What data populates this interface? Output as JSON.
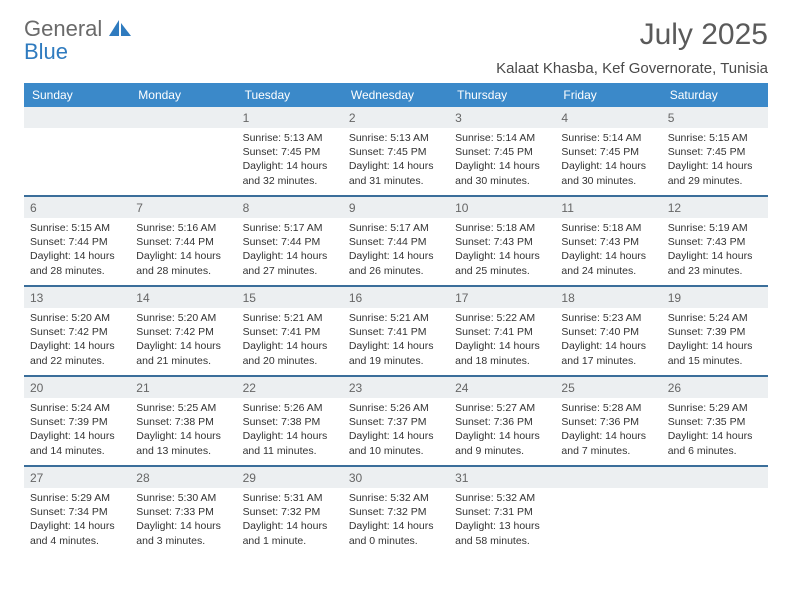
{
  "logo": {
    "word1": "General",
    "word2": "Blue"
  },
  "title": "July 2025",
  "subtitle": "Kalaat Khasba, Kef Governorate, Tunisia",
  "colors": {
    "header_bg": "#3b89c9",
    "week_border": "#3b6e9a",
    "daynum_bg": "#eceff1",
    "logo_gray": "#6a6a6a",
    "logo_blue": "#2f7bbf"
  },
  "dayHeaders": [
    "Sunday",
    "Monday",
    "Tuesday",
    "Wednesday",
    "Thursday",
    "Friday",
    "Saturday"
  ],
  "weeks": [
    [
      {
        "n": "",
        "sr": "",
        "ss": "",
        "dl": ""
      },
      {
        "n": "",
        "sr": "",
        "ss": "",
        "dl": ""
      },
      {
        "n": "1",
        "sr": "5:13 AM",
        "ss": "7:45 PM",
        "dl": "14 hours and 32 minutes."
      },
      {
        "n": "2",
        "sr": "5:13 AM",
        "ss": "7:45 PM",
        "dl": "14 hours and 31 minutes."
      },
      {
        "n": "3",
        "sr": "5:14 AM",
        "ss": "7:45 PM",
        "dl": "14 hours and 30 minutes."
      },
      {
        "n": "4",
        "sr": "5:14 AM",
        "ss": "7:45 PM",
        "dl": "14 hours and 30 minutes."
      },
      {
        "n": "5",
        "sr": "5:15 AM",
        "ss": "7:45 PM",
        "dl": "14 hours and 29 minutes."
      }
    ],
    [
      {
        "n": "6",
        "sr": "5:15 AM",
        "ss": "7:44 PM",
        "dl": "14 hours and 28 minutes."
      },
      {
        "n": "7",
        "sr": "5:16 AM",
        "ss": "7:44 PM",
        "dl": "14 hours and 28 minutes."
      },
      {
        "n": "8",
        "sr": "5:17 AM",
        "ss": "7:44 PM",
        "dl": "14 hours and 27 minutes."
      },
      {
        "n": "9",
        "sr": "5:17 AM",
        "ss": "7:44 PM",
        "dl": "14 hours and 26 minutes."
      },
      {
        "n": "10",
        "sr": "5:18 AM",
        "ss": "7:43 PM",
        "dl": "14 hours and 25 minutes."
      },
      {
        "n": "11",
        "sr": "5:18 AM",
        "ss": "7:43 PM",
        "dl": "14 hours and 24 minutes."
      },
      {
        "n": "12",
        "sr": "5:19 AM",
        "ss": "7:43 PM",
        "dl": "14 hours and 23 minutes."
      }
    ],
    [
      {
        "n": "13",
        "sr": "5:20 AM",
        "ss": "7:42 PM",
        "dl": "14 hours and 22 minutes."
      },
      {
        "n": "14",
        "sr": "5:20 AM",
        "ss": "7:42 PM",
        "dl": "14 hours and 21 minutes."
      },
      {
        "n": "15",
        "sr": "5:21 AM",
        "ss": "7:41 PM",
        "dl": "14 hours and 20 minutes."
      },
      {
        "n": "16",
        "sr": "5:21 AM",
        "ss": "7:41 PM",
        "dl": "14 hours and 19 minutes."
      },
      {
        "n": "17",
        "sr": "5:22 AM",
        "ss": "7:41 PM",
        "dl": "14 hours and 18 minutes."
      },
      {
        "n": "18",
        "sr": "5:23 AM",
        "ss": "7:40 PM",
        "dl": "14 hours and 17 minutes."
      },
      {
        "n": "19",
        "sr": "5:24 AM",
        "ss": "7:39 PM",
        "dl": "14 hours and 15 minutes."
      }
    ],
    [
      {
        "n": "20",
        "sr": "5:24 AM",
        "ss": "7:39 PM",
        "dl": "14 hours and 14 minutes."
      },
      {
        "n": "21",
        "sr": "5:25 AM",
        "ss": "7:38 PM",
        "dl": "14 hours and 13 minutes."
      },
      {
        "n": "22",
        "sr": "5:26 AM",
        "ss": "7:38 PM",
        "dl": "14 hours and 11 minutes."
      },
      {
        "n": "23",
        "sr": "5:26 AM",
        "ss": "7:37 PM",
        "dl": "14 hours and 10 minutes."
      },
      {
        "n": "24",
        "sr": "5:27 AM",
        "ss": "7:36 PM",
        "dl": "14 hours and 9 minutes."
      },
      {
        "n": "25",
        "sr": "5:28 AM",
        "ss": "7:36 PM",
        "dl": "14 hours and 7 minutes."
      },
      {
        "n": "26",
        "sr": "5:29 AM",
        "ss": "7:35 PM",
        "dl": "14 hours and 6 minutes."
      }
    ],
    [
      {
        "n": "27",
        "sr": "5:29 AM",
        "ss": "7:34 PM",
        "dl": "14 hours and 4 minutes."
      },
      {
        "n": "28",
        "sr": "5:30 AM",
        "ss": "7:33 PM",
        "dl": "14 hours and 3 minutes."
      },
      {
        "n": "29",
        "sr": "5:31 AM",
        "ss": "7:32 PM",
        "dl": "14 hours and 1 minute."
      },
      {
        "n": "30",
        "sr": "5:32 AM",
        "ss": "7:32 PM",
        "dl": "14 hours and 0 minutes."
      },
      {
        "n": "31",
        "sr": "5:32 AM",
        "ss": "7:31 PM",
        "dl": "13 hours and 58 minutes."
      },
      {
        "n": "",
        "sr": "",
        "ss": "",
        "dl": ""
      },
      {
        "n": "",
        "sr": "",
        "ss": "",
        "dl": ""
      }
    ]
  ],
  "labels": {
    "sunrise": "Sunrise:",
    "sunset": "Sunset:",
    "daylight": "Daylight:"
  }
}
